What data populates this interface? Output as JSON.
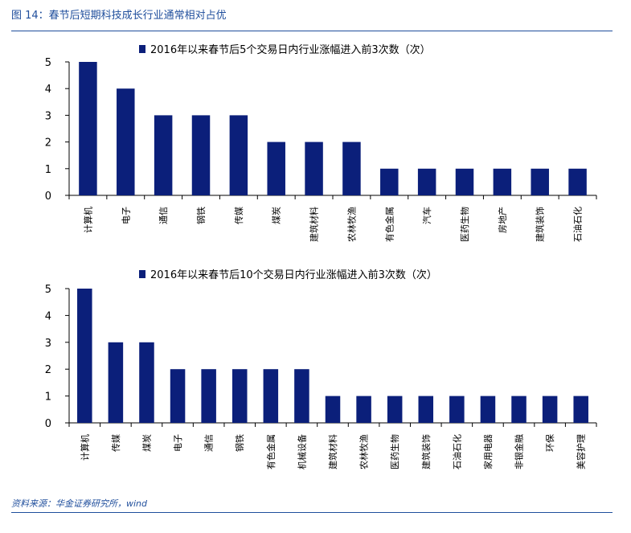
{
  "figure": {
    "title": "图 14：春节后短期科技成长行业通常相对占优",
    "source": "资料来源：华金证券研究所，wind"
  },
  "colors": {
    "bar": "#0b1f7a",
    "axis": "#000000",
    "text": "#1f4e9c"
  },
  "chart_data": [
    {
      "type": "bar",
      "legend": "2016年以来春节后5个交易日内行业涨幅进入前3次数（次）",
      "categories": [
        "计算机",
        "电子",
        "通信",
        "钢铁",
        "传媒",
        "煤炭",
        "建筑材料",
        "农林牧渔",
        "有色金属",
        "汽车",
        "医药生物",
        "房地产",
        "建筑装饰",
        "石油石化"
      ],
      "values": [
        5,
        4,
        3,
        3,
        3,
        2,
        2,
        2,
        1,
        1,
        1,
        1,
        1,
        1
      ],
      "yticks": [
        "0",
        "1",
        "2",
        "3",
        "4",
        "5"
      ],
      "ylim": [
        0,
        5
      ],
      "legend_position": "top-center"
    },
    {
      "type": "bar",
      "legend": "2016年以来春节后10个交易日内行业涨幅进入前3次数（次）",
      "categories": [
        "计算机",
        "传媒",
        "煤炭",
        "电子",
        "通信",
        "钢铁",
        "有色金属",
        "机械设备",
        "建筑材料",
        "农林牧渔",
        "医药生物",
        "建筑装饰",
        "石油石化",
        "家用电器",
        "非银金融",
        "环保",
        "美容护理"
      ],
      "values": [
        5,
        3,
        3,
        2,
        2,
        2,
        2,
        2,
        1,
        1,
        1,
        1,
        1,
        1,
        1,
        1,
        1
      ],
      "yticks": [
        "0",
        "1",
        "2",
        "3",
        "4",
        "5"
      ],
      "ylim": [
        0,
        5
      ],
      "legend_position": "top-center"
    }
  ]
}
